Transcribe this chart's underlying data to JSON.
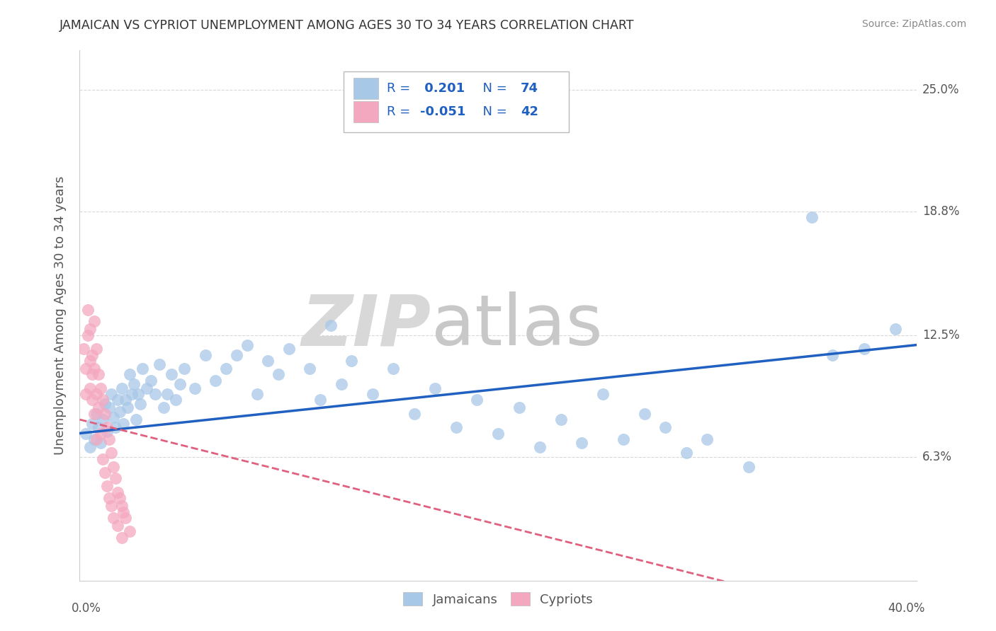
{
  "title": "JAMAICAN VS CYPRIOT UNEMPLOYMENT AMONG AGES 30 TO 34 YEARS CORRELATION CHART",
  "source": "Source: ZipAtlas.com",
  "ylabel": "Unemployment Among Ages 30 to 34 years",
  "xlim": [
    0.0,
    0.4
  ],
  "ylim": [
    0.0,
    0.27
  ],
  "ytick_vals": [
    0.063,
    0.125,
    0.188,
    0.25
  ],
  "ytick_labels": [
    "6.3%",
    "12.5%",
    "18.8%",
    "25.0%"
  ],
  "xtick_vals": [
    0.0,
    0.4
  ],
  "xtick_labels": [
    "0.0%",
    "40.0%"
  ],
  "r_jamaican": 0.201,
  "n_jamaican": 74,
  "r_cypriot": -0.051,
  "n_cypriot": 42,
  "jamaican_color": "#a8c8e8",
  "cypriot_color": "#f4a8c0",
  "jamaican_line_color": "#2060c0",
  "cypriot_line_color": "#e06080",
  "watermark_zip": "ZIP",
  "watermark_atlas": "atlas",
  "watermark_color": "#d8d8d8",
  "background_color": "#ffffff",
  "grid_color": "#d8d8d8",
  "title_color": "#333333",
  "label_color": "#555555",
  "source_color": "#888888",
  "legend_text_color": "#2060c0",
  "jamaican_points": [
    [
      0.003,
      0.075
    ],
    [
      0.005,
      0.068
    ],
    [
      0.006,
      0.08
    ],
    [
      0.007,
      0.072
    ],
    [
      0.008,
      0.085
    ],
    [
      0.009,
      0.078
    ],
    [
      0.01,
      0.07
    ],
    [
      0.011,
      0.082
    ],
    [
      0.012,
      0.09
    ],
    [
      0.013,
      0.076
    ],
    [
      0.014,
      0.088
    ],
    [
      0.015,
      0.095
    ],
    [
      0.016,
      0.083
    ],
    [
      0.017,
      0.078
    ],
    [
      0.018,
      0.092
    ],
    [
      0.019,
      0.086
    ],
    [
      0.02,
      0.098
    ],
    [
      0.021,
      0.08
    ],
    [
      0.022,
      0.092
    ],
    [
      0.023,
      0.088
    ],
    [
      0.024,
      0.105
    ],
    [
      0.025,
      0.095
    ],
    [
      0.026,
      0.1
    ],
    [
      0.027,
      0.082
    ],
    [
      0.028,
      0.095
    ],
    [
      0.029,
      0.09
    ],
    [
      0.03,
      0.108
    ],
    [
      0.032,
      0.098
    ],
    [
      0.034,
      0.102
    ],
    [
      0.036,
      0.095
    ],
    [
      0.038,
      0.11
    ],
    [
      0.04,
      0.088
    ],
    [
      0.042,
      0.095
    ],
    [
      0.044,
      0.105
    ],
    [
      0.046,
      0.092
    ],
    [
      0.048,
      0.1
    ],
    [
      0.05,
      0.108
    ],
    [
      0.055,
      0.098
    ],
    [
      0.06,
      0.115
    ],
    [
      0.065,
      0.102
    ],
    [
      0.07,
      0.108
    ],
    [
      0.075,
      0.115
    ],
    [
      0.08,
      0.12
    ],
    [
      0.085,
      0.095
    ],
    [
      0.09,
      0.112
    ],
    [
      0.095,
      0.105
    ],
    [
      0.1,
      0.118
    ],
    [
      0.11,
      0.108
    ],
    [
      0.115,
      0.092
    ],
    [
      0.12,
      0.13
    ],
    [
      0.125,
      0.1
    ],
    [
      0.13,
      0.112
    ],
    [
      0.14,
      0.095
    ],
    [
      0.15,
      0.108
    ],
    [
      0.16,
      0.085
    ],
    [
      0.17,
      0.098
    ],
    [
      0.18,
      0.078
    ],
    [
      0.19,
      0.092
    ],
    [
      0.2,
      0.075
    ],
    [
      0.21,
      0.088
    ],
    [
      0.22,
      0.068
    ],
    [
      0.23,
      0.082
    ],
    [
      0.24,
      0.07
    ],
    [
      0.25,
      0.095
    ],
    [
      0.26,
      0.072
    ],
    [
      0.27,
      0.085
    ],
    [
      0.28,
      0.078
    ],
    [
      0.29,
      0.065
    ],
    [
      0.3,
      0.072
    ],
    [
      0.32,
      0.058
    ],
    [
      0.35,
      0.185
    ],
    [
      0.36,
      0.115
    ],
    [
      0.375,
      0.118
    ],
    [
      0.39,
      0.128
    ]
  ],
  "cypriot_points": [
    [
      0.002,
      0.118
    ],
    [
      0.003,
      0.108
    ],
    [
      0.003,
      0.095
    ],
    [
      0.004,
      0.125
    ],
    [
      0.004,
      0.138
    ],
    [
      0.005,
      0.112
    ],
    [
      0.005,
      0.098
    ],
    [
      0.005,
      0.128
    ],
    [
      0.006,
      0.105
    ],
    [
      0.006,
      0.115
    ],
    [
      0.006,
      0.092
    ],
    [
      0.007,
      0.132
    ],
    [
      0.007,
      0.108
    ],
    [
      0.007,
      0.085
    ],
    [
      0.008,
      0.118
    ],
    [
      0.008,
      0.095
    ],
    [
      0.008,
      0.072
    ],
    [
      0.009,
      0.105
    ],
    [
      0.009,
      0.088
    ],
    [
      0.01,
      0.098
    ],
    [
      0.01,
      0.075
    ],
    [
      0.011,
      0.092
    ],
    [
      0.011,
      0.062
    ],
    [
      0.012,
      0.085
    ],
    [
      0.012,
      0.055
    ],
    [
      0.013,
      0.078
    ],
    [
      0.013,
      0.048
    ],
    [
      0.014,
      0.072
    ],
    [
      0.014,
      0.042
    ],
    [
      0.015,
      0.065
    ],
    [
      0.015,
      0.038
    ],
    [
      0.016,
      0.058
    ],
    [
      0.016,
      0.032
    ],
    [
      0.017,
      0.052
    ],
    [
      0.018,
      0.045
    ],
    [
      0.018,
      0.028
    ],
    [
      0.019,
      0.042
    ],
    [
      0.02,
      0.038
    ],
    [
      0.02,
      0.022
    ],
    [
      0.021,
      0.035
    ],
    [
      0.022,
      0.032
    ],
    [
      0.024,
      0.025
    ]
  ]
}
